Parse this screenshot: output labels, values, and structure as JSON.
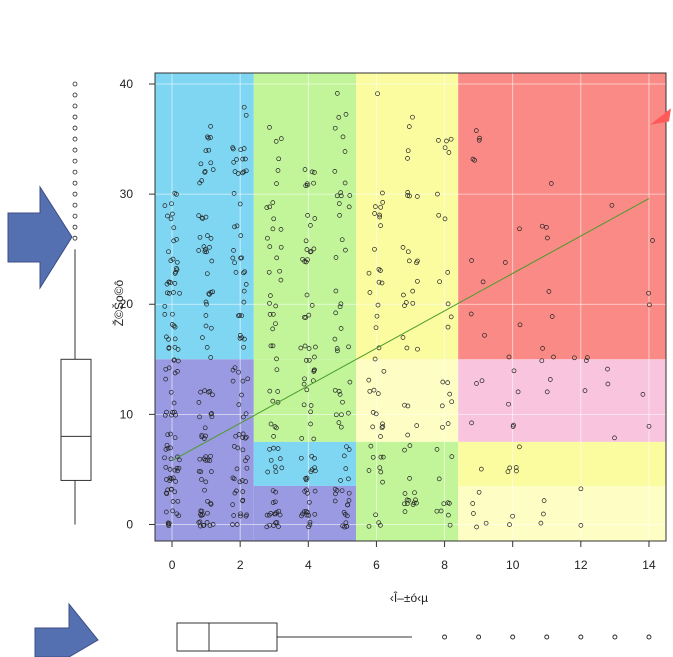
{
  "colors": {
    "blue_zone": "#7fd6f2",
    "green_zone": "#c2f59a",
    "yellow_zone": "#fbfba0",
    "red_zone": "#fa8a86",
    "purple_zone": "#9a9ae2",
    "pink_zone": "#f9c4dd",
    "light_yellow_zone": "#fdfdc4",
    "arrow": "#5570b0",
    "trend": "#4c9a2a"
  },
  "chart_data": {
    "type": "scatter",
    "title": "",
    "xlabel": "‹Î–±ó‹µ",
    "ylabel": "Ž©Šo©ô",
    "xlim": [
      -0.5,
      14.5
    ],
    "ylim": [
      -1.5,
      41
    ],
    "xticks": [
      0,
      2,
      4,
      6,
      8,
      10,
      12,
      14
    ],
    "yticks": [
      0,
      10,
      20,
      30,
      40
    ],
    "x_tick_labels": [
      "0",
      "2",
      "4",
      "6",
      "8",
      "10",
      "12",
      "14"
    ],
    "y_tick_labels": [
      "0",
      "10",
      "20",
      "30",
      "40"
    ],
    "regions": [
      {
        "x": [
          -0.5,
          2.4
        ],
        "y": [
          15,
          41
        ],
        "color": "blue_zone"
      },
      {
        "x": [
          2.4,
          5.4
        ],
        "y": [
          15,
          41
        ],
        "color": "green_zone"
      },
      {
        "x": [
          5.4,
          8.4
        ],
        "y": [
          15,
          41
        ],
        "color": "yellow_zone"
      },
      {
        "x": [
          8.4,
          14.5
        ],
        "y": [
          15,
          41
        ],
        "color": "red_zone"
      },
      {
        "x": [
          -0.5,
          2.4
        ],
        "y": [
          -1.5,
          15
        ],
        "color": "purple_zone"
      },
      {
        "x": [
          2.4,
          5.4
        ],
        "y": [
          7.5,
          15
        ],
        "color": "green_zone"
      },
      {
        "x": [
          2.4,
          5.4
        ],
        "y": [
          3.5,
          7.5
        ],
        "color": "blue_zone"
      },
      {
        "x": [
          2.4,
          5.4
        ],
        "y": [
          -1.5,
          3.5
        ],
        "color": "purple_zone"
      },
      {
        "x": [
          5.4,
          8.4
        ],
        "y": [
          7.5,
          15
        ],
        "color": "light_yellow_zone"
      },
      {
        "x": [
          5.4,
          8.4
        ],
        "y": [
          -1.5,
          7.5
        ],
        "color": "green_zone"
      },
      {
        "x": [
          8.4,
          14.5
        ],
        "y": [
          7.5,
          15
        ],
        "color": "pink_zone"
      },
      {
        "x": [
          8.4,
          14.5
        ],
        "y": [
          3.5,
          7.5
        ],
        "color": "yellow_zone"
      },
      {
        "x": [
          8.4,
          14.5
        ],
        "y": [
          -1.5,
          3.5
        ],
        "color": "light_yellow_zone"
      }
    ],
    "column_counts": [
      {
        "x": 0,
        "n": 95,
        "ymax": 30
      },
      {
        "x": 1,
        "n": 85,
        "ymax": 36
      },
      {
        "x": 2,
        "n": 80,
        "ymax": 38
      },
      {
        "x": 3,
        "n": 65,
        "ymax": 37
      },
      {
        "x": 4,
        "n": 70,
        "ymax": 35
      },
      {
        "x": 5,
        "n": 60,
        "ymax": 39
      },
      {
        "x": 6,
        "n": 45,
        "ymax": 39
      },
      {
        "x": 7,
        "n": 40,
        "ymax": 37
      },
      {
        "x": 8,
        "n": 30,
        "ymax": 37
      },
      {
        "x": 9,
        "n": 18,
        "ymax": 39
      },
      {
        "x": 10,
        "n": 16,
        "ymax": 30
      },
      {
        "x": 11,
        "n": 14,
        "ymax": 36
      },
      {
        "x": 12,
        "n": 6,
        "ymax": 18
      },
      {
        "x": 13,
        "n": 4,
        "ymax": 35
      },
      {
        "x": 14,
        "n": 5,
        "ymax": 34
      }
    ],
    "trend_line": {
      "x": [
        0,
        14
      ],
      "y": [
        5.8,
        29.6
      ]
    },
    "y_boxplot": {
      "min": 0,
      "q1": 4,
      "median": 8,
      "q3": 15,
      "whisker_high": 25,
      "outliers": [
        26,
        27,
        28,
        29,
        30,
        31,
        32,
        33,
        34,
        35,
        36,
        37,
        38,
        39,
        40
      ]
    },
    "x_boxplot": {
      "min": 0,
      "q1": 0,
      "median": 1,
      "q3": 3,
      "whisker_high": 7,
      "outliers": [
        8,
        9,
        10,
        11,
        12,
        13,
        14
      ]
    },
    "grid": true,
    "legend": "none"
  }
}
